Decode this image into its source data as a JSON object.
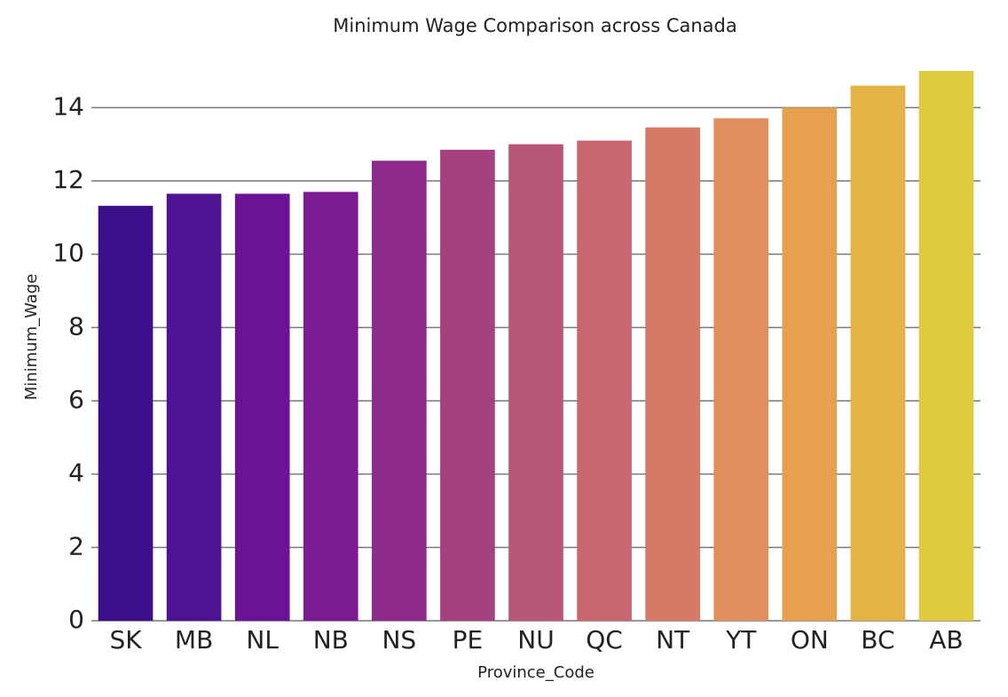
{
  "chart_data": {
    "type": "bar",
    "title": "Minimum Wage Comparison across Canada",
    "x_label": "Province_Code",
    "y_label": "Minimum_Wage",
    "categories": [
      "SK",
      "MB",
      "NL",
      "NB",
      "NS",
      "PE",
      "NU",
      "QC",
      "NT",
      "YT",
      "ON",
      "BC",
      "AB"
    ],
    "values": [
      11.32,
      11.65,
      11.65,
      11.7,
      12.55,
      12.85,
      13.0,
      13.1,
      13.46,
      13.71,
      14.0,
      14.6,
      15.0
    ],
    "colors": [
      "#3b0f8a",
      "#4e1292",
      "#6a1394",
      "#7c1a92",
      "#8e2a8a",
      "#a5417f",
      "#b85677",
      "#c8676f",
      "#d57a66",
      "#df8e5c",
      "#e6a04e",
      "#e3b346",
      "#dfca3d"
    ],
    "ylim": [
      0,
      15
    ],
    "yticks": [
      0,
      2,
      4,
      6,
      8,
      10,
      12,
      14
    ],
    "grid": true
  }
}
